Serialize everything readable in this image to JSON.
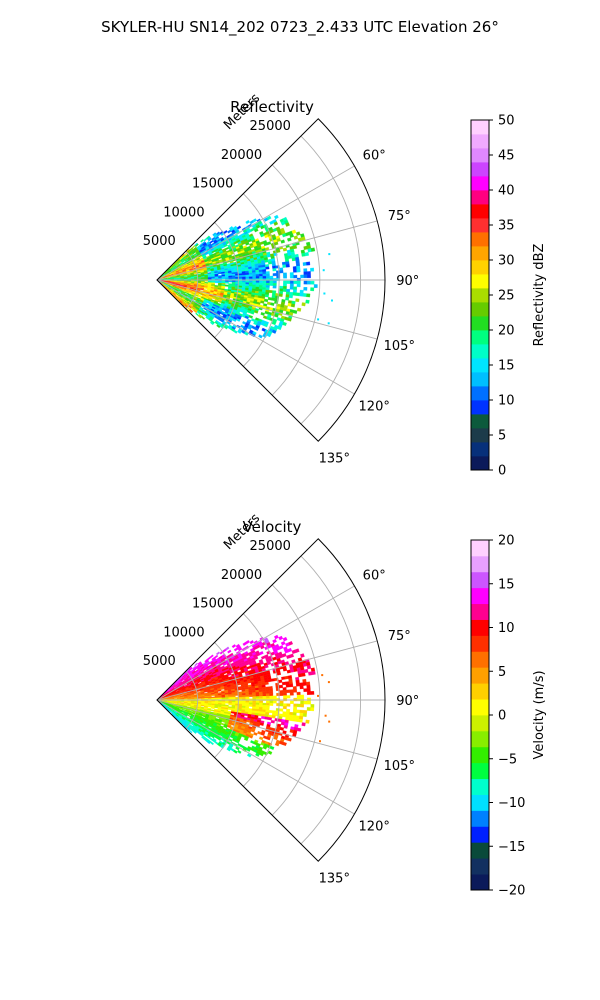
{
  "suptitle": "SKYLER-HU  SN14_202  0723_2.433 UTC Elevation 26°",
  "chart_data": [
    {
      "type": "polar-sector",
      "title": "Reflectivity",
      "radial_axis_label": "Meters",
      "radial_ticks": [
        "5000",
        "10000",
        "15000",
        "20000",
        "25000"
      ],
      "radial_tick_values": [
        5000,
        10000,
        15000,
        20000,
        25000
      ],
      "rmax": 28000,
      "azimuth_ticks": [
        "60°",
        "75°",
        "90°",
        "105°",
        "120°",
        "135°"
      ],
      "azimuth_tick_values": [
        60,
        75,
        90,
        105,
        120,
        135
      ],
      "azimuth_range": [
        45,
        135
      ],
      "grid": true,
      "colorbar": {
        "label": "Reflectivity dBZ",
        "range": [
          0,
          50
        ],
        "ticks": [
          "0",
          "5",
          "10",
          "15",
          "20",
          "25",
          "30",
          "35",
          "40",
          "45",
          "50"
        ]
      },
      "field_description": "Echo extends to about 18000 m; highest values (35-40 dBZ) near the radar at 95-110 degrees, 15-25 dBZ across most of the sector.",
      "colors": [
        "#0b1a5a",
        "#07307a",
        "#1c3b4a",
        "#0c5a3c",
        "#0033ff",
        "#0070ff",
        "#00bfff",
        "#00e5ff",
        "#00ffc8",
        "#00ff80",
        "#22dd22",
        "#66cc00",
        "#aadd00",
        "#ffff00",
        "#ffd200",
        "#ffa500",
        "#ff7000",
        "#ff3030",
        "#ff0000",
        "#ff0080",
        "#ff00ff",
        "#cc44ff",
        "#e088ff",
        "#f0aaff",
        "#ffd0ff"
      ]
    },
    {
      "type": "polar-sector",
      "title": "Velocity",
      "radial_axis_label": "Meters",
      "radial_ticks": [
        "5000",
        "10000",
        "15000",
        "20000",
        "25000"
      ],
      "radial_tick_values": [
        5000,
        10000,
        15000,
        20000,
        25000
      ],
      "rmax": 28000,
      "azimuth_ticks": [
        "60°",
        "75°",
        "90°",
        "105°",
        "120°",
        "135°"
      ],
      "azimuth_tick_values": [
        60,
        75,
        90,
        105,
        120,
        135
      ],
      "azimuth_range": [
        45,
        135
      ],
      "grid": true,
      "colorbar": {
        "label": "Velocity (m/s)",
        "range": [
          -20,
          20
        ],
        "ticks": [
          "−20",
          "−15",
          "−10",
          "−5",
          "0",
          "5",
          "10",
          "15",
          "20"
        ]
      },
      "field_description": "Positive (outbound, orange/red to magenta) velocities in the 45-90 degree half, near zero (yellow) around 90-105 degrees, negative (green) on the 110-135 degree side near the radar.",
      "colors": [
        "#0b1a5a",
        "#123060",
        "#0a4a3a",
        "#0020ff",
        "#0080ff",
        "#00e0ff",
        "#00ffcc",
        "#00ff40",
        "#33ee00",
        "#88ee00",
        "#ccf000",
        "#ffff00",
        "#ffd000",
        "#ffa000",
        "#ff7000",
        "#ff3000",
        "#ff0000",
        "#ff0090",
        "#ff00ff",
        "#cc55ff",
        "#e8a0ff",
        "#ffd0ff"
      ]
    }
  ]
}
